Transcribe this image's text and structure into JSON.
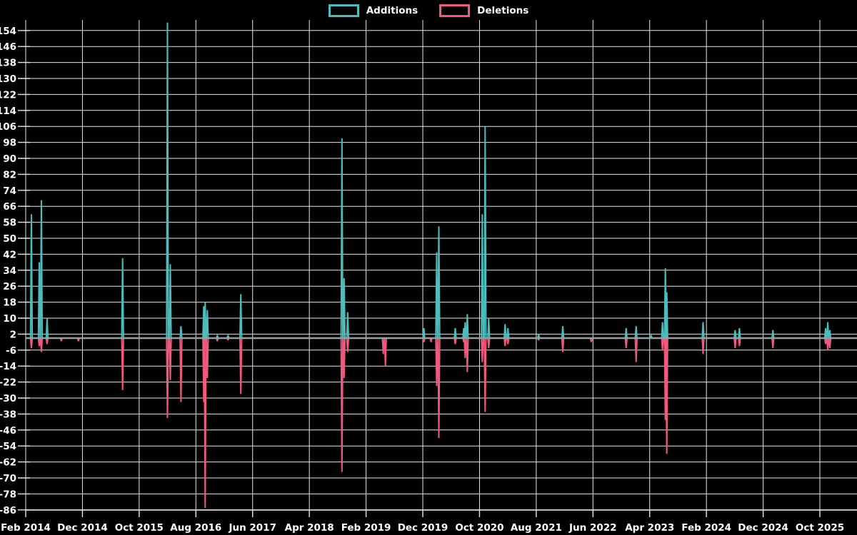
{
  "legend": {
    "additions_label": "Additions",
    "deletions_label": "Deletions"
  },
  "colors": {
    "background": "#000000",
    "additions": "#4cbcbc",
    "deletions": "#f0597c",
    "grid": "#e8e8e8",
    "zero_line": "#8fa6ab",
    "text": "#ffffff"
  },
  "chart_data": {
    "type": "line",
    "title": "",
    "xlabel": "",
    "ylabel": "",
    "legend_position": "top-center",
    "grid": true,
    "series": [
      {
        "name": "Additions",
        "color": "#4cbcbc"
      },
      {
        "name": "Deletions",
        "color": "#f0597c"
      }
    ],
    "y_axis": {
      "min": -86,
      "max": 154,
      "step": 8,
      "ticks": [
        154,
        146,
        138,
        130,
        122,
        114,
        106,
        98,
        90,
        82,
        74,
        66,
        58,
        50,
        42,
        34,
        26,
        18,
        10,
        2,
        -6,
        -14,
        -22,
        -30,
        -38,
        -46,
        -54,
        -62,
        -70,
        -78,
        -86
      ]
    },
    "x_axis": {
      "start_label": "Feb 2014",
      "months_per_tick": 10,
      "tick_labels": [
        "Feb 2014",
        "Dec 2014",
        "Oct 2015",
        "Aug 2016",
        "Jun 2017",
        "Apr 2018",
        "Feb 2019",
        "Dec 2019",
        "Oct 2020",
        "Aug 2021",
        "Jun 2022",
        "Apr 2023",
        "Feb 2024",
        "Dec 2024",
        "Oct 2025"
      ]
    },
    "default_value": 0,
    "events": [
      {
        "m": 1.0,
        "date": "Mar 2014",
        "additions": 62,
        "deletions": -5
      },
      {
        "m": 2.39,
        "date": "Apr 2014",
        "additions": 38,
        "deletions": -4
      },
      {
        "m": 2.76,
        "date": "Apr 2014",
        "additions": 69,
        "deletions": -7
      },
      {
        "m": 3.77,
        "date": "May 2014",
        "additions": 10,
        "deletions": -3
      },
      {
        "m": 6.28,
        "date": "Aug 2014",
        "additions": 0,
        "deletions": -1.5
      },
      {
        "m": 9.29,
        "date": "Nov 2014",
        "additions": 0,
        "deletions": -1.5
      },
      {
        "m": 17.08,
        "date": "Jul 2015",
        "additions": 40,
        "deletions": -26
      },
      {
        "m": 24.99,
        "date": "Mar 2016",
        "additions": 158,
        "deletions": -40
      },
      {
        "m": 25.49,
        "date": "Mar 2016",
        "additions": 37,
        "deletions": -21
      },
      {
        "m": 27.37,
        "date": "May 2016",
        "additions": 6,
        "deletions": -32
      },
      {
        "m": 31.39,
        "date": "Sep 2016",
        "additions": 16,
        "deletions": -32
      },
      {
        "m": 31.64,
        "date": "Sep 2016",
        "additions": 18,
        "deletions": -85
      },
      {
        "m": 32.02,
        "date": "Oct 2016",
        "additions": 14,
        "deletions": -20
      },
      {
        "m": 33.78,
        "date": "Nov 2016",
        "additions": 1.5,
        "deletions": -1.5
      },
      {
        "m": 35.66,
        "date": "Jan 2017",
        "additions": 1.5,
        "deletions": -1
      },
      {
        "m": 37.92,
        "date": "Apr 2017",
        "additions": 22,
        "deletions": -28
      },
      {
        "m": 55.75,
        "date": "Sep 2018",
        "additions": 100,
        "deletions": -67
      },
      {
        "m": 56.13,
        "date": "Oct 2018",
        "additions": 30,
        "deletions": -20
      },
      {
        "m": 56.76,
        "date": "Oct 2018",
        "additions": 13,
        "deletions": -7
      },
      {
        "m": 63.03,
        "date": "May 2019",
        "additions": 0,
        "deletions": -8
      },
      {
        "m": 63.41,
        "date": "May 2019",
        "additions": 0,
        "deletions": -14
      },
      {
        "m": 70.19,
        "date": "Dec 2019",
        "additions": 5,
        "deletions": -2
      },
      {
        "m": 71.45,
        "date": "Jan 2020",
        "additions": 0,
        "deletions": -2
      },
      {
        "m": 72.45,
        "date": "Feb 2020",
        "additions": 43,
        "deletions": -24
      },
      {
        "m": 72.83,
        "date": "Feb 2020",
        "additions": 56,
        "deletions": -50
      },
      {
        "m": 75.72,
        "date": "May 2020",
        "additions": 5,
        "deletions": -3
      },
      {
        "m": 77.22,
        "date": "Jul 2020",
        "additions": 5,
        "deletions": -2
      },
      {
        "m": 77.47,
        "date": "Jul 2020",
        "additions": 8,
        "deletions": -10
      },
      {
        "m": 77.85,
        "date": "Aug 2020",
        "additions": 12,
        "deletions": -17
      },
      {
        "m": 80.49,
        "date": "Oct 2020",
        "additions": 62,
        "deletions": -12
      },
      {
        "m": 80.99,
        "date": "Nov 2020",
        "additions": 106,
        "deletions": -37
      },
      {
        "m": 81.62,
        "date": "Nov 2020",
        "additions": 10,
        "deletions": -5
      },
      {
        "m": 84.51,
        "date": "Feb 2021",
        "additions": 7,
        "deletions": -4
      },
      {
        "m": 85.01,
        "date": "Mar 2021",
        "additions": 5,
        "deletions": -3
      },
      {
        "m": 90.41,
        "date": "Aug 2021",
        "additions": 2,
        "deletions": -1
      },
      {
        "m": 94.68,
        "date": "Dec 2021",
        "additions": 6,
        "deletions": -7
      },
      {
        "m": 99.7,
        "date": "May 2022",
        "additions": 0,
        "deletions": -2
      },
      {
        "m": 105.85,
        "date": "Nov 2022",
        "additions": 5,
        "deletions": -5
      },
      {
        "m": 107.61,
        "date": "Jan 2023",
        "additions": 6,
        "deletions": -12
      },
      {
        "m": 110.25,
        "date": "Apr 2023",
        "additions": 1.5,
        "deletions": 0
      },
      {
        "m": 112.26,
        "date": "Jun 2023",
        "additions": 8,
        "deletions": -6
      },
      {
        "m": 112.76,
        "date": "Jun 2023",
        "additions": 35,
        "deletions": -41
      },
      {
        "m": 113.01,
        "date": "Jul 2023",
        "additions": 23,
        "deletions": -58
      },
      {
        "m": 119.41,
        "date": "Jan 2024",
        "additions": 8,
        "deletions": -8
      },
      {
        "m": 125.06,
        "date": "Jul 2024",
        "additions": 4,
        "deletions": -5
      },
      {
        "m": 125.82,
        "date": "Aug 2024",
        "additions": 5,
        "deletions": -4
      },
      {
        "m": 131.72,
        "date": "Feb 2025",
        "additions": 4,
        "deletions": -5
      },
      {
        "m": 141.01,
        "date": "Nov 2025",
        "additions": 5,
        "deletions": -3
      },
      {
        "m": 141.39,
        "date": "Nov 2025",
        "additions": 8,
        "deletions": -6
      },
      {
        "m": 141.76,
        "date": "Nov 2025",
        "additions": 4,
        "deletions": -5
      }
    ]
  }
}
